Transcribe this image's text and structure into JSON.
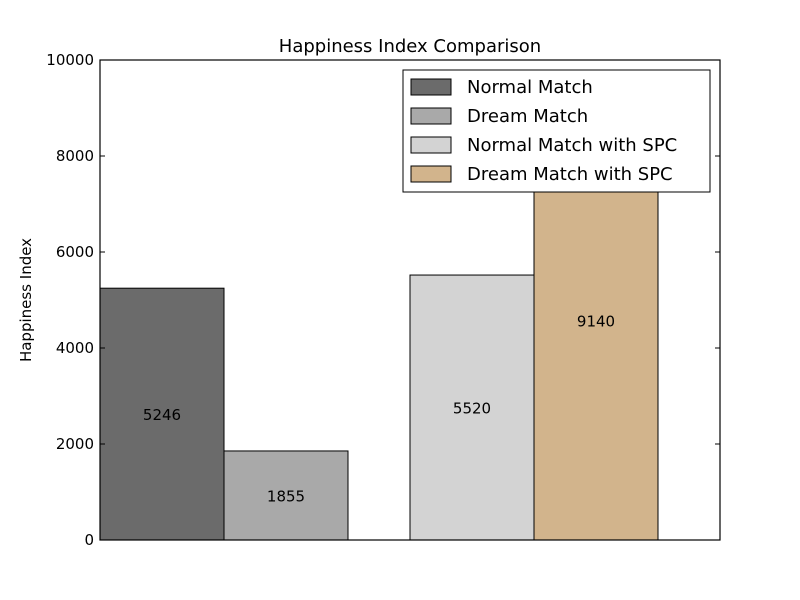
{
  "chart_data": {
    "type": "bar",
    "title": "Happiness Index Comparison",
    "xlabel": "",
    "ylabel": "Happiness Index",
    "ylim": [
      0,
      10000
    ],
    "yticks": [
      0,
      2000,
      4000,
      6000,
      8000,
      10000
    ],
    "grid": false,
    "legend_position": "top-right",
    "bars": [
      {
        "series": "Normal Match",
        "value": 5246,
        "color": "#6b6b6b",
        "group": 1
      },
      {
        "series": "Dream Match",
        "value": 1855,
        "color": "#a9a9a9",
        "group": 1
      },
      {
        "series": "Normal Match with SPC",
        "value": 5520,
        "color": "#d3d3d3",
        "group": 2
      },
      {
        "series": "Dream Match with SPC",
        "value": 9140,
        "color": "#d2b48c",
        "group": 2
      }
    ],
    "legend": [
      {
        "label": "Normal Match",
        "color": "#6b6b6b"
      },
      {
        "label": "Dream Match",
        "color": "#a9a9a9"
      },
      {
        "label": "Normal Match with SPC",
        "color": "#d3d3d3"
      },
      {
        "label": "Dream Match with SPC",
        "color": "#d2b48c"
      }
    ]
  }
}
